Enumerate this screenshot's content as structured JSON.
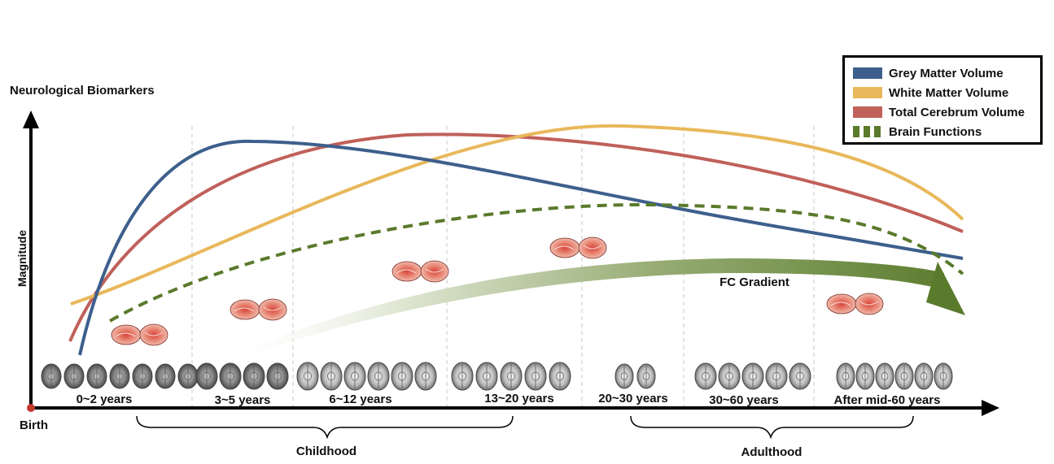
{
  "axes": {
    "y_label": "Neurological Biomarkers",
    "y_side_label": "Magnitude",
    "origin_label": "Birth"
  },
  "stages": [
    {
      "label": "0~2 years"
    },
    {
      "label": "3~5 years"
    },
    {
      "label": "6~12 years"
    },
    {
      "label": "13~20 years"
    },
    {
      "label": "20~30 years"
    },
    {
      "label": "30~60 years"
    },
    {
      "label": "After mid-60 years"
    }
  ],
  "groups": {
    "childhood": "Childhood",
    "adulthood": "Adulthood"
  },
  "gradient_label": "FC Gradient",
  "legend": [
    {
      "label": "Grey Matter Volume",
      "color": "#3d5f8c",
      "style": "solid"
    },
    {
      "label": "White Matter Volume",
      "color": "#e8b85a",
      "style": "solid"
    },
    {
      "label": "Total Cerebrum Volume",
      "color": "#c0605a",
      "style": "solid"
    },
    {
      "label": "Brain Functions",
      "color": "#5a7a2c",
      "style": "dashed"
    }
  ],
  "colors": {
    "grey_matter": "#3d5f8c",
    "white_matter": "#e8b85a",
    "cerebrum": "#c0605a",
    "brain_functions": "#5a7a2c",
    "gradient_end": "#5a7a2c",
    "axis": "#000000",
    "origin_dot": "#c0392b"
  }
}
